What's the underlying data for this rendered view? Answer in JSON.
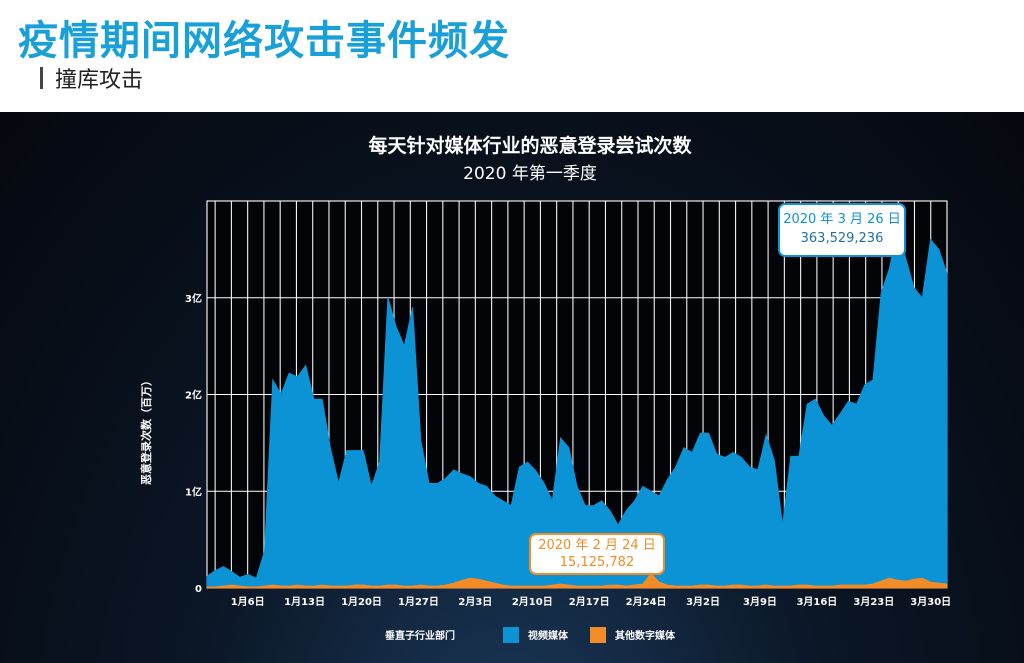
{
  "header": {
    "title": "疫情期间网络攻击事件频发",
    "subtitle": "撞库攻击"
  },
  "chart_data": {
    "type": "area",
    "title": "每天针对媒体行业的恶意登录尝试次数",
    "subtitle": "2020 年第一季度",
    "ylabel": "恶意登录次数（百万）",
    "y_ticks": [
      {
        "value": 0,
        "label": "0"
      },
      {
        "value": 100,
        "label": "1亿"
      },
      {
        "value": 200,
        "label": "2亿"
      },
      {
        "value": 300,
        "label": "3亿"
      }
    ],
    "ylim": [
      0,
      400
    ],
    "x_tick_labels": [
      "1月6日",
      "1月13日",
      "1月20日",
      "1月27日",
      "2月3日",
      "2月10日",
      "2月17日",
      "2月24日",
      "3月2日",
      "3月9日",
      "3月16日",
      "3月23日",
      "3月30日"
    ],
    "x_tick_positions": [
      5,
      12,
      19,
      26,
      33,
      40,
      47,
      54,
      61,
      68,
      75,
      82,
      89
    ],
    "x_range": [
      0,
      91
    ],
    "grid": true,
    "legend_title": "垂直子行业部门",
    "legend_position": "bottom",
    "series": [
      {
        "name": "视频媒体",
        "color": "#0b93d6",
        "values": [
          12,
          18,
          22,
          17,
          11,
          14,
          10,
          38,
          215,
          200,
          222,
          218,
          230,
          195,
          195,
          145,
          108,
          142,
          142,
          142,
          105,
          130,
          300,
          270,
          250,
          290,
          152,
          108,
          108,
          113,
          122,
          118,
          115,
          108,
          105,
          95,
          90,
          85,
          125,
          130,
          121,
          108,
          90,
          155,
          145,
          105,
          85,
          85,
          90,
          80,
          65,
          80,
          90,
          105,
          100,
          95,
          112,
          125,
          145,
          140,
          160,
          160,
          138,
          135,
          140,
          135,
          125,
          122,
          158,
          132,
          65,
          136,
          136,
          190,
          195,
          178,
          168,
          180,
          193,
          190,
          210,
          215,
          305,
          330,
          372,
          340,
          310,
          300,
          360,
          350,
          325
        ],
        "callout": {
          "label": "2020 年 3 月 26 日",
          "value": "363,529,236"
        }
      },
      {
        "name": "其他数字媒体",
        "color": "#f28c28",
        "values": [
          1,
          1,
          2,
          3,
          2,
          1,
          1,
          2,
          3,
          2,
          2,
          3,
          2,
          2,
          3,
          2,
          2,
          2,
          3,
          3,
          2,
          2,
          3,
          3,
          2,
          2,
          3,
          2,
          2,
          3,
          5,
          8,
          10,
          9,
          7,
          5,
          3,
          2,
          2,
          2,
          2,
          2,
          3,
          4,
          3,
          2,
          2,
          2,
          2,
          3,
          3,
          2,
          3,
          4,
          15,
          6,
          3,
          2,
          2,
          2,
          3,
          3,
          2,
          2,
          3,
          3,
          2,
          2,
          3,
          2,
          2,
          2,
          3,
          3,
          2,
          2,
          2,
          3,
          3,
          3,
          3,
          4,
          7,
          10,
          8,
          7,
          9,
          10,
          6,
          5,
          4
        ],
        "callout": {
          "label": "2020 年 2 月 24 日",
          "value": "15,125,782"
        }
      }
    ]
  }
}
